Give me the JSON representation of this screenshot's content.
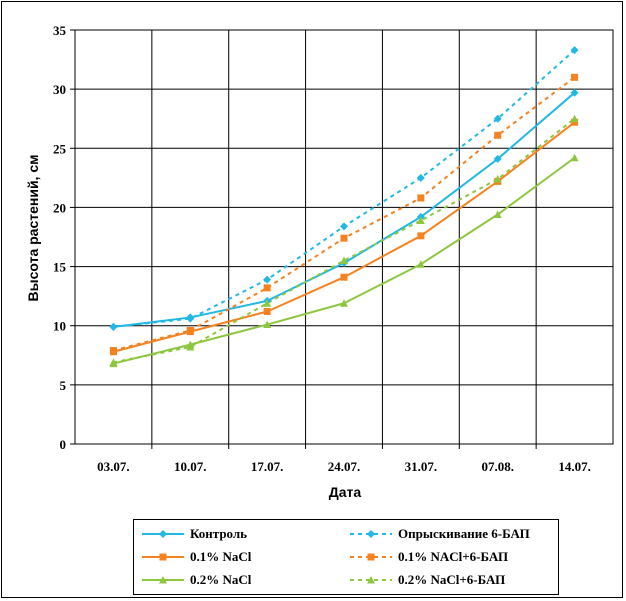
{
  "chart_data": {
    "type": "line",
    "title": "",
    "xlabel": "Дата",
    "ylabel": "Высота растений, см",
    "categories": [
      "03.07.",
      "10.07.",
      "17.07.",
      "24.07.",
      "31.07.",
      "07.08.",
      "14.07."
    ],
    "ylim": [
      0,
      35
    ],
    "yticks": [
      0,
      5,
      10,
      15,
      20,
      25,
      30,
      35
    ],
    "grid": true,
    "legend_position": "bottom",
    "series": [
      {
        "name": "Контроль",
        "color": "#22B8E6",
        "style": "solid",
        "marker": "diamond",
        "values": [
          9.9,
          10.7,
          12.1,
          15.3,
          19.2,
          24.1,
          29.7
        ]
      },
      {
        "name": "Опрыскивание 6-БАП",
        "color": "#22B8E6",
        "style": "dashed",
        "marker": "diamond",
        "values": [
          9.9,
          10.6,
          13.9,
          18.4,
          22.5,
          27.5,
          33.3
        ]
      },
      {
        "name": "0.1% NaCl",
        "color": "#F58220",
        "style": "solid",
        "marker": "square",
        "values": [
          7.8,
          9.5,
          11.2,
          14.1,
          17.6,
          22.2,
          27.2
        ]
      },
      {
        "name": "0.1% NACl+6-БАП",
        "color": "#F58220",
        "style": "dashed",
        "marker": "square",
        "values": [
          7.9,
          9.6,
          13.2,
          17.4,
          20.8,
          26.1,
          31.0
        ]
      },
      {
        "name": "0.2% NaCl",
        "color": "#8DC63F",
        "style": "solid",
        "marker": "triangle",
        "values": [
          6.8,
          8.4,
          10.1,
          11.9,
          15.2,
          19.4,
          24.2
        ]
      },
      {
        "name": "0.2% NaCl+6-БАП",
        "color": "#8DC63F",
        "style": "dashed",
        "marker": "triangle",
        "values": [
          6.9,
          8.2,
          11.9,
          15.5,
          18.9,
          22.4,
          27.5
        ]
      }
    ]
  }
}
